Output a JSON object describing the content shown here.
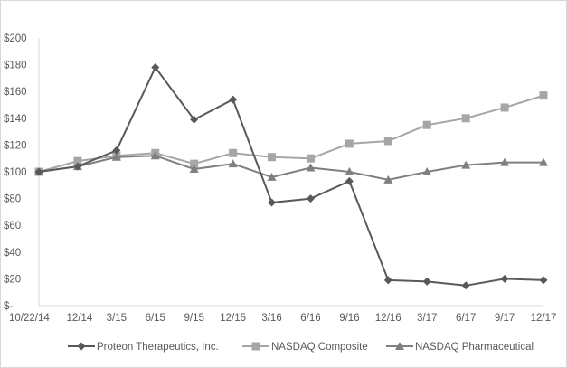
{
  "chart_data": {
    "type": "line",
    "title": "",
    "xlabel": "",
    "ylabel": "",
    "categories": [
      "10/22/14",
      "12/14",
      "3/15",
      "6/15",
      "9/15",
      "12/15",
      "3/16",
      "6/16",
      "9/16",
      "12/16",
      "3/17",
      "6/17",
      "9/17",
      "12/17"
    ],
    "ylim": [
      0,
      200
    ],
    "yticks": [
      0,
      20,
      40,
      60,
      80,
      100,
      120,
      140,
      160,
      180,
      200
    ],
    "ytick_labels": [
      "$-",
      "$20",
      "$40",
      "$60",
      "$80",
      "$100",
      "$120",
      "$140",
      "$160",
      "$180",
      "$200"
    ],
    "grid": false,
    "legend_position": "bottom",
    "series": [
      {
        "name": "Proteon Therapeutics, Inc.",
        "color": "#595959",
        "marker": "diamond",
        "values": [
          100,
          104,
          116,
          178,
          139,
          154,
          77,
          80,
          93,
          19,
          18,
          15,
          20,
          19
        ]
      },
      {
        "name": "NASDAQ Composite",
        "color": "#a6a6a6",
        "marker": "square",
        "values": [
          100,
          108,
          112,
          114,
          106,
          114,
          111,
          110,
          121,
          123,
          135,
          140,
          148,
          157
        ]
      },
      {
        "name": "NASDAQ Pharmaceutical",
        "color": "#7f7f7f",
        "marker": "triangle",
        "values": [
          100,
          104,
          111,
          112,
          102,
          106,
          96,
          103,
          100,
          94,
          100,
          105,
          107,
          107
        ]
      }
    ]
  }
}
